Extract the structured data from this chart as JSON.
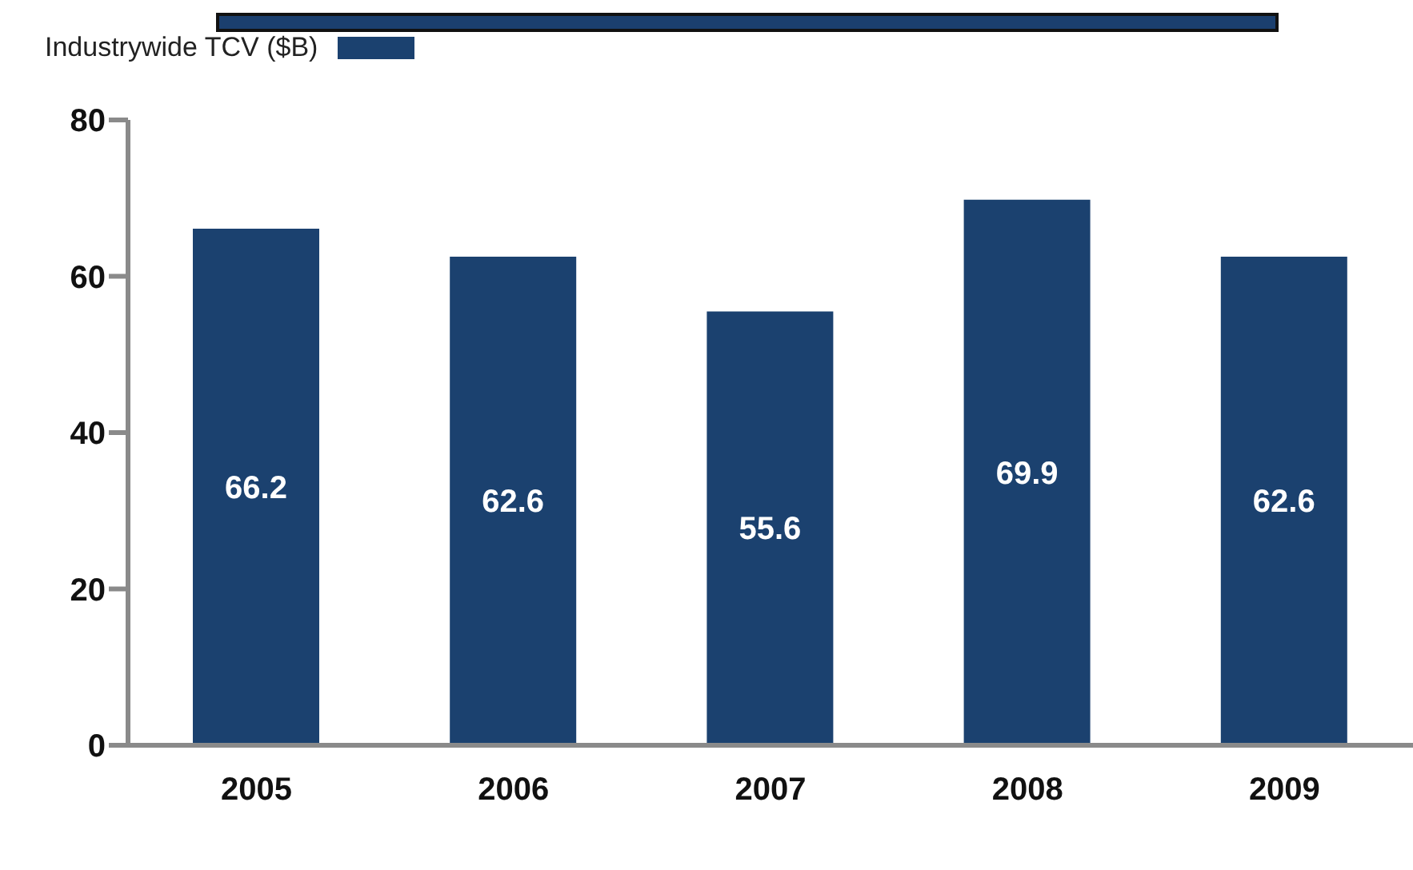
{
  "chart_data": {
    "type": "bar",
    "categories": [
      "2005",
      "2006",
      "2007",
      "2008",
      "2009"
    ],
    "series": [
      {
        "name": "Industrywide TCV ($B)",
        "color": "#1b416f",
        "values": [
          66.2,
          62.6,
          55.6,
          69.9,
          62.6
        ]
      }
    ],
    "ylim": [
      0,
      80
    ],
    "yticks": [
      0,
      20,
      40,
      60,
      80
    ],
    "grid": false,
    "legend": "top left",
    "data_labels": true
  }
}
